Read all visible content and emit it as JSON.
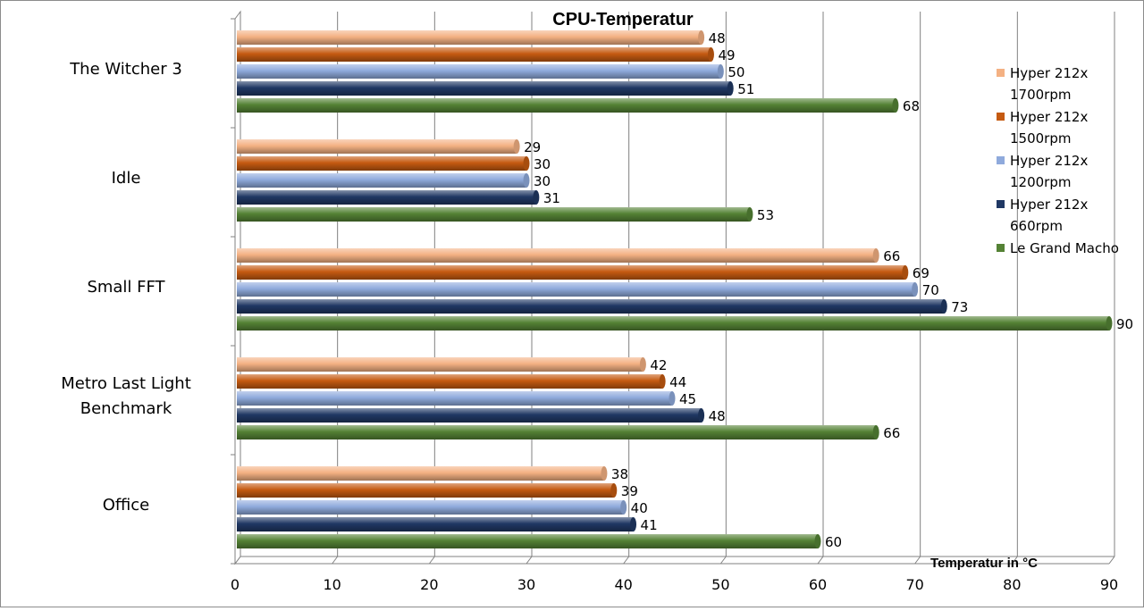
{
  "chart_data": {
    "type": "bar",
    "orientation": "horizontal",
    "title": "CPU-Temperatur",
    "xlabel": "Temperatur in °C",
    "ylabel": "",
    "xlim": [
      0,
      90
    ],
    "xticks": [
      0,
      10,
      20,
      30,
      40,
      50,
      60,
      70,
      80,
      90
    ],
    "grid": true,
    "legend_position": "right",
    "categories": [
      "The Witcher 3",
      "Idle",
      "Small FFT",
      "Metro Last Light Benchmark",
      "Office"
    ],
    "category_lines": [
      [
        "The Witcher 3"
      ],
      [
        "Idle"
      ],
      [
        "Small FFT"
      ],
      [
        "Metro Last Light",
        "Benchmark"
      ],
      [
        "Office"
      ]
    ],
    "series": [
      {
        "name": "Hyper 212x 1700rpm",
        "legend_lines": [
          "Hyper 212x",
          "1700rpm"
        ],
        "color": "#F4B183",
        "values": [
          48,
          29,
          66,
          42,
          38
        ]
      },
      {
        "name": "Hyper 212x 1500rpm",
        "legend_lines": [
          "Hyper 212x",
          "1500rpm"
        ],
        "color": "#C55A11",
        "values": [
          49,
          30,
          69,
          44,
          39
        ]
      },
      {
        "name": "Hyper 212x 1200rpm",
        "legend_lines": [
          "Hyper 212x",
          "1200rpm"
        ],
        "color": "#8FAADC",
        "values": [
          50,
          30,
          70,
          45,
          40
        ]
      },
      {
        "name": "Hyper 212x 660rpm",
        "legend_lines": [
          "Hyper 212x",
          "660rpm"
        ],
        "color": "#203864",
        "values": [
          51,
          31,
          73,
          48,
          41
        ]
      },
      {
        "name": "Le Grand Macho",
        "legend_lines": [
          "Le Grand Macho"
        ],
        "color": "#548235",
        "values": [
          68,
          53,
          90,
          66,
          60
        ]
      }
    ]
  }
}
